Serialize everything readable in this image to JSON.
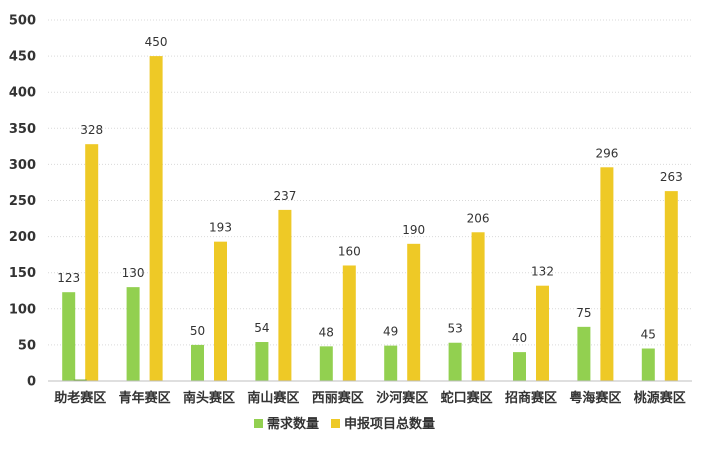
{
  "chart_data": {
    "type": "bar",
    "categories": [
      "助老赛区",
      "青年赛区",
      "南头赛区",
      "南山赛区",
      "西丽赛区",
      "沙河赛区",
      "蛇口赛区",
      "招商赛区",
      "粤海赛区",
      "桃源赛区"
    ],
    "series": [
      {
        "name": "需求数量",
        "color": "#92d050",
        "values": [
          123,
          130,
          50,
          54,
          48,
          49,
          53,
          40,
          75,
          45
        ],
        "labels": [
          "123",
          "130",
          "50",
          "54",
          "48",
          "49",
          "53",
          "40",
          "75",
          "45"
        ]
      },
      {
        "name": "申报项目总数量",
        "color": "#eec926",
        "values": [
          328,
          450,
          193,
          237,
          160,
          190,
          206,
          132,
          296,
          263
        ],
        "labels": [
          "328",
          "450",
          "193",
          "237",
          "160",
          "190",
          "206",
          "132",
          "296",
          "263"
        ]
      }
    ],
    "extra_bar": {
      "category_index": 0,
      "value": 2,
      "color": "#70a830"
    },
    "yticks": [
      "0",
      "50",
      "100",
      "150",
      "200",
      "250",
      "300",
      "350",
      "400",
      "450",
      "500"
    ],
    "ylim": [
      0,
      500
    ],
    "grid": true,
    "legend_position": "bottom"
  }
}
